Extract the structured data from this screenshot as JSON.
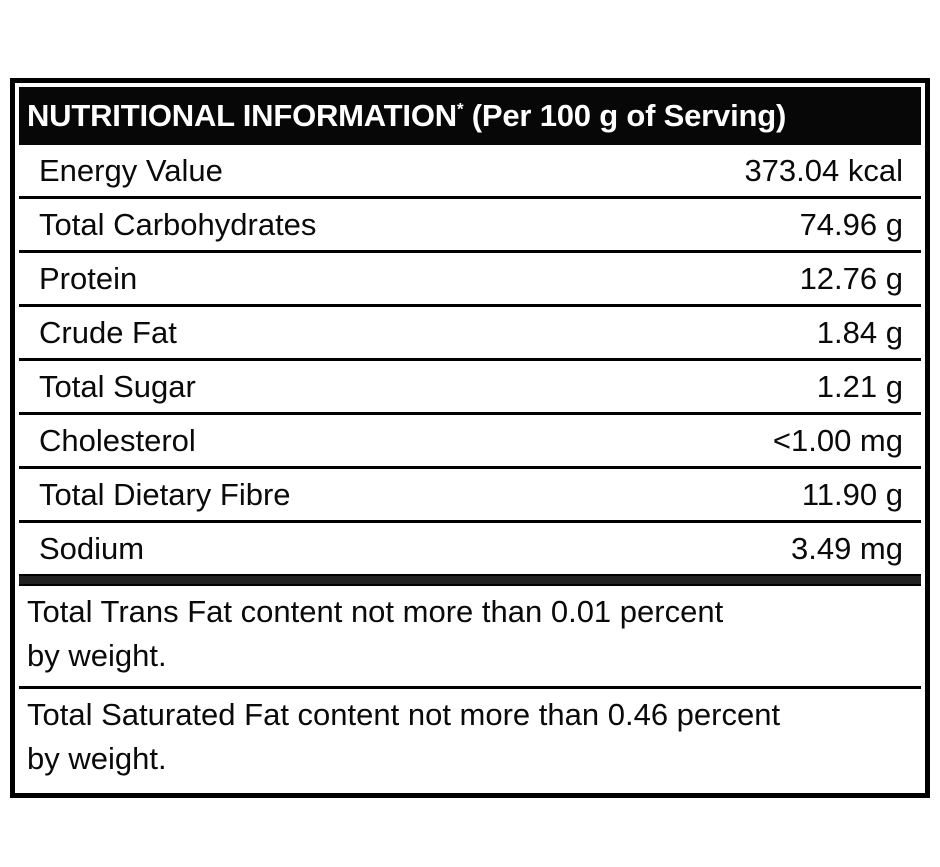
{
  "label": {
    "header": {
      "title": "NUTRITIONAL INFORMATION",
      "asterisk": "*",
      "subtitle": " (Per 100 g of Serving)"
    },
    "rows": [
      {
        "name": "Energy Value",
        "value": "373.04 kcal"
      },
      {
        "name": "Total Carbohydrates",
        "value": "74.96 g"
      },
      {
        "name": "Protein",
        "value": "12.76 g"
      },
      {
        "name": "Crude Fat",
        "value": "1.84 g"
      },
      {
        "name": "Total Sugar",
        "value": "1.21 g"
      },
      {
        "name": "Cholesterol",
        "value": "<1.00 mg"
      },
      {
        "name": "Total Dietary Fibre",
        "value": "11.90 g"
      },
      {
        "name": "Sodium",
        "value": "3.49 mg"
      }
    ],
    "notes": [
      {
        "lines": [
          "Total Trans Fat content not more than 0.01 percent",
          "by weight."
        ]
      },
      {
        "lines": [
          "Total Saturated Fat content not more than 0.46 percent",
          "by weight."
        ]
      }
    ],
    "colors": {
      "header_bg": "#070707",
      "header_text": "#ffffff",
      "body_text": "#0a0a0a",
      "border": "#000000",
      "section_divider": "#222222"
    }
  }
}
